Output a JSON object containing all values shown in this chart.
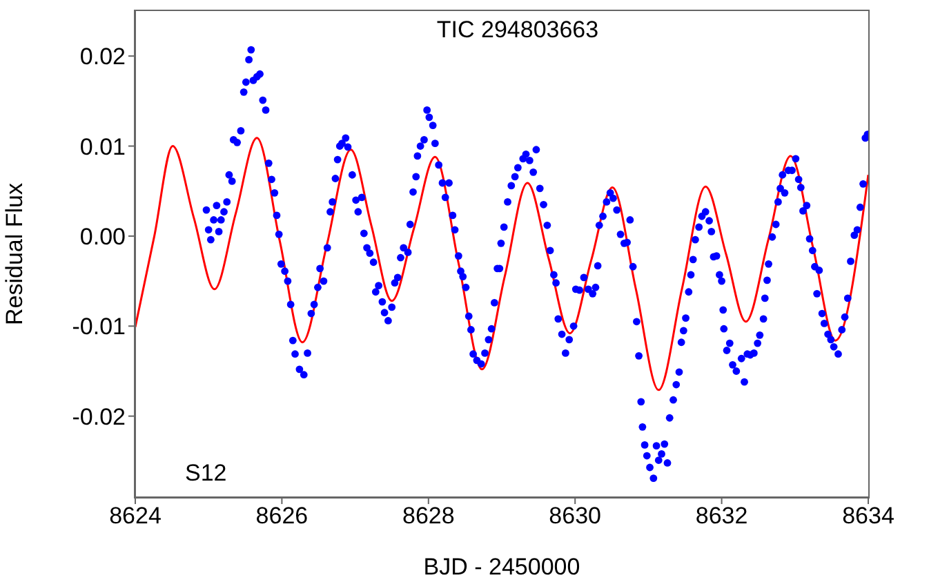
{
  "chart_data": {
    "type": "scatter",
    "title": "TIC 294803663",
    "xlabel": "BJD - 2450000",
    "ylabel": "Residual Flux",
    "annotations": [
      "S12"
    ],
    "xlim": [
      8624,
      8634
    ],
    "xticks": [
      8624,
      8626,
      8628,
      8630,
      8632,
      8634
    ],
    "ylim": [
      -0.029,
      0.025
    ],
    "yticks": [
      {
        "value": -0.02,
        "label": "-0.02"
      },
      {
        "value": -0.01,
        "label": "-0.01"
      },
      {
        "value": 0,
        "label": "0.00"
      },
      {
        "value": 0.01,
        "label": "0.01"
      },
      {
        "value": 0.02,
        "label": "0.02"
      }
    ],
    "series": [
      {
        "color": "#0000ff",
        "marker": "circle",
        "x": [
          8624.97,
          8625.0,
          8625.03,
          8625.07,
          8625.11,
          8625.14,
          8625.17,
          8625.21,
          8625.25,
          8625.28,
          8625.32,
          8625.34,
          8625.39,
          8625.44,
          8625.48,
          8625.51,
          8625.55,
          8625.58,
          8625.61,
          8625.66,
          8625.7,
          8625.74,
          8625.78,
          8625.82,
          8625.86,
          8625.9,
          8625.93,
          8625.96,
          8625.99,
          8626.04,
          8626.08,
          8626.12,
          8626.15,
          8626.18,
          8626.24,
          8626.3,
          8626.35,
          8626.4,
          8626.44,
          8626.49,
          8626.52,
          8626.57,
          8626.62,
          8626.66,
          8626.69,
          8626.73,
          8626.76,
          8626.79,
          8626.82,
          8626.87,
          8626.9,
          8626.96,
          8627.01,
          8627.04,
          8627.09,
          8627.12,
          8627.16,
          8627.2,
          8627.25,
          8627.28,
          8627.32,
          8627.37,
          8627.4,
          8627.45,
          8627.5,
          8627.54,
          8627.58,
          8627.62,
          8627.66,
          8627.72,
          8627.75,
          8627.79,
          8627.83,
          8627.85,
          8627.89,
          8627.94,
          8627.98,
          8628.01,
          8628.06,
          8628.09,
          8628.14,
          8628.19,
          8628.23,
          8628.28,
          8628.33,
          8628.36,
          8628.41,
          8628.44,
          8628.47,
          8628.51,
          8628.55,
          8628.58,
          8628.61,
          8628.66,
          8628.72,
          8628.77,
          8628.82,
          8628.86,
          8628.9,
          8628.94,
          8628.97,
          8628.99,
          8629.03,
          8629.08,
          8629.13,
          8629.18,
          8629.22,
          8629.29,
          8629.33,
          8629.38,
          8629.43,
          8629.47,
          8629.52,
          8629.57,
          8629.62,
          8629.66,
          8629.71,
          8629.74,
          8629.77,
          8629.82,
          8629.87,
          8629.92,
          8629.98,
          8630.01,
          8630.06,
          8630.12,
          8630.18,
          8630.24,
          8630.28,
          8630.31,
          8630.33,
          8630.38,
          8630.43,
          8630.48,
          8630.52,
          8630.57,
          8630.62,
          8630.67,
          8630.71,
          8630.75,
          8630.79,
          8630.84,
          8630.87,
          8630.9,
          8630.92,
          8630.95,
          8630.98,
          8631.02,
          8631.07,
          8631.11,
          8631.14,
          8631.18,
          8631.22,
          8631.26,
          8631.29,
          8631.34,
          8631.38,
          8631.42,
          8631.45,
          8631.48,
          8631.51,
          8631.55,
          8631.58,
          8631.61,
          8631.64,
          8631.69,
          8631.73,
          8631.78,
          8631.83,
          8631.86,
          8631.89,
          8631.93,
          8631.97,
          8632.0,
          8632.02,
          8632.03,
          8632.07,
          8632.11,
          8632.15,
          8632.2,
          8632.27,
          8632.31,
          8632.35,
          8632.39,
          8632.44,
          8632.49,
          8632.52,
          8632.57,
          8632.59,
          8632.62,
          8632.64,
          8632.69,
          8632.74,
          8632.77,
          8632.8,
          8632.83,
          8632.86,
          8632.91,
          8632.96,
          8633.01,
          8633.05,
          8633.08,
          8633.11,
          8633.16,
          8633.2,
          8633.24,
          8633.27,
          8633.3,
          8633.33,
          8633.37,
          8633.4,
          8633.45,
          8633.49,
          8633.53,
          8633.59,
          8633.64,
          8633.68,
          8633.72,
          8633.76,
          8633.81,
          8633.85,
          8633.89,
          8633.93,
          8633.96,
          8633.99
        ],
        "values": [
          0.0029,
          0.0007,
          -0.0004,
          0.0018,
          0.0034,
          0.0005,
          0.0018,
          0.0027,
          0.0038,
          0.0068,
          0.0061,
          0.0107,
          0.0104,
          0.0117,
          0.016,
          0.0171,
          0.0196,
          0.0207,
          0.0173,
          0.0177,
          0.018,
          0.0151,
          0.014,
          0.0081,
          0.0063,
          0.0048,
          0.0023,
          0.0002,
          -0.0031,
          -0.0039,
          -0.005,
          -0.0076,
          -0.0116,
          -0.0131,
          -0.0148,
          -0.0154,
          -0.013,
          -0.0086,
          -0.0076,
          -0.0057,
          -0.0036,
          -0.005,
          -0.0013,
          0.0027,
          0.0038,
          0.0064,
          0.0085,
          0.01,
          0.0103,
          0.0109,
          0.0099,
          0.0068,
          0.004,
          0.0027,
          0.0043,
          0.0003,
          -0.0013,
          -0.0019,
          -0.0029,
          -0.0062,
          -0.0055,
          -0.0073,
          -0.0085,
          -0.0094,
          -0.0079,
          -0.0052,
          -0.0046,
          -0.0024,
          -0.0013,
          -0.0018,
          0.0013,
          0.0049,
          0.0066,
          0.0089,
          0.01,
          0.0107,
          0.014,
          0.0132,
          0.0123,
          0.0103,
          0.0079,
          0.0059,
          0.0043,
          0.0059,
          0.0023,
          0.0007,
          -0.0022,
          -0.0039,
          -0.0045,
          -0.0057,
          -0.0089,
          -0.0104,
          -0.0131,
          -0.0138,
          -0.0142,
          -0.013,
          -0.0115,
          -0.0103,
          -0.0074,
          -0.0036,
          -0.0036,
          -0.0008,
          0.001,
          0.0038,
          0.0056,
          0.0066,
          0.0076,
          0.0086,
          0.0091,
          0.0084,
          0.0071,
          0.0096,
          0.0053,
          0.0035,
          0.0012,
          -0.0016,
          -0.0043,
          -0.0052,
          -0.0092,
          -0.0109,
          -0.013,
          -0.0115,
          -0.01,
          -0.0059,
          -0.006,
          -0.0046,
          -0.0059,
          -0.0064,
          -0.0057,
          -0.0033,
          0.0012,
          0.0022,
          0.0038,
          0.0048,
          0.0042,
          0.0029,
          0.0002,
          -0.0008,
          -0.0007,
          0.0018,
          -0.0034,
          -0.0095,
          -0.0133,
          -0.0184,
          -0.0212,
          -0.0232,
          -0.0244,
          -0.0257,
          -0.0269,
          -0.0233,
          -0.0249,
          -0.0242,
          -0.0231,
          -0.0252,
          -0.0202,
          -0.0182,
          -0.0165,
          -0.0151,
          -0.0118,
          -0.0105,
          -0.0091,
          -0.0062,
          -0.0043,
          -0.0026,
          -0.0004,
          0.001,
          0.0022,
          0.0027,
          0.0017,
          0.0005,
          -0.0023,
          -0.0022,
          -0.0043,
          -0.005,
          -0.0082,
          -0.0103,
          -0.0127,
          -0.0119,
          -0.0143,
          -0.015,
          -0.0136,
          -0.0162,
          -0.0131,
          -0.0132,
          -0.013,
          -0.0119,
          -0.011,
          -0.0092,
          -0.0069,
          -0.0049,
          -0.0031,
          -0.0001,
          0.0013,
          0.0038,
          0.0053,
          0.0068,
          0.0048,
          0.0073,
          0.0073,
          0.0086,
          0.0063,
          0.0054,
          0.0028,
          0.0034,
          -0.0003,
          -0.0016,
          -0.0034,
          -0.0064,
          -0.0038,
          -0.0086,
          -0.0097,
          -0.0109,
          -0.0115,
          -0.0123,
          -0.0131,
          -0.0104,
          -0.009,
          -0.0069,
          -0.0028,
          0.0001,
          0.0007,
          0.0032,
          0.0058,
          0.0109,
          0.0113
        ]
      },
      {
        "type": "line",
        "color": "#ff0000",
        "line_style": "solid",
        "x": [
          8624.0,
          8624.26,
          8624.51,
          8624.8,
          8625.08,
          8625.37,
          8625.66,
          8625.97,
          8626.28,
          8626.61,
          8626.94,
          8627.22,
          8627.5,
          8627.8,
          8628.09,
          8628.41,
          8628.73,
          8629.04,
          8629.35,
          8629.64,
          8629.93,
          8630.22,
          8630.51,
          8630.83,
          8631.14,
          8631.46,
          8631.78,
          8632.06,
          8632.33,
          8632.64,
          8632.94,
          8633.25,
          8633.55,
          8634.0
        ],
        "values": [
          -0.0101,
          0.0,
          0.01,
          0.002,
          -0.0059,
          0.0025,
          0.0109,
          -0.0005,
          -0.0118,
          -0.0011,
          0.0096,
          0.0012,
          -0.0072,
          0.0008,
          0.0088,
          -0.003,
          -0.0148,
          -0.0045,
          0.0059,
          -0.0025,
          -0.0108,
          -0.0027,
          0.0054,
          -0.0059,
          -0.0171,
          -0.0058,
          0.0055,
          -0.002,
          -0.0095,
          -0.0003,
          0.0089,
          -0.0014,
          -0.0116,
          0.0068
        ]
      }
    ]
  }
}
